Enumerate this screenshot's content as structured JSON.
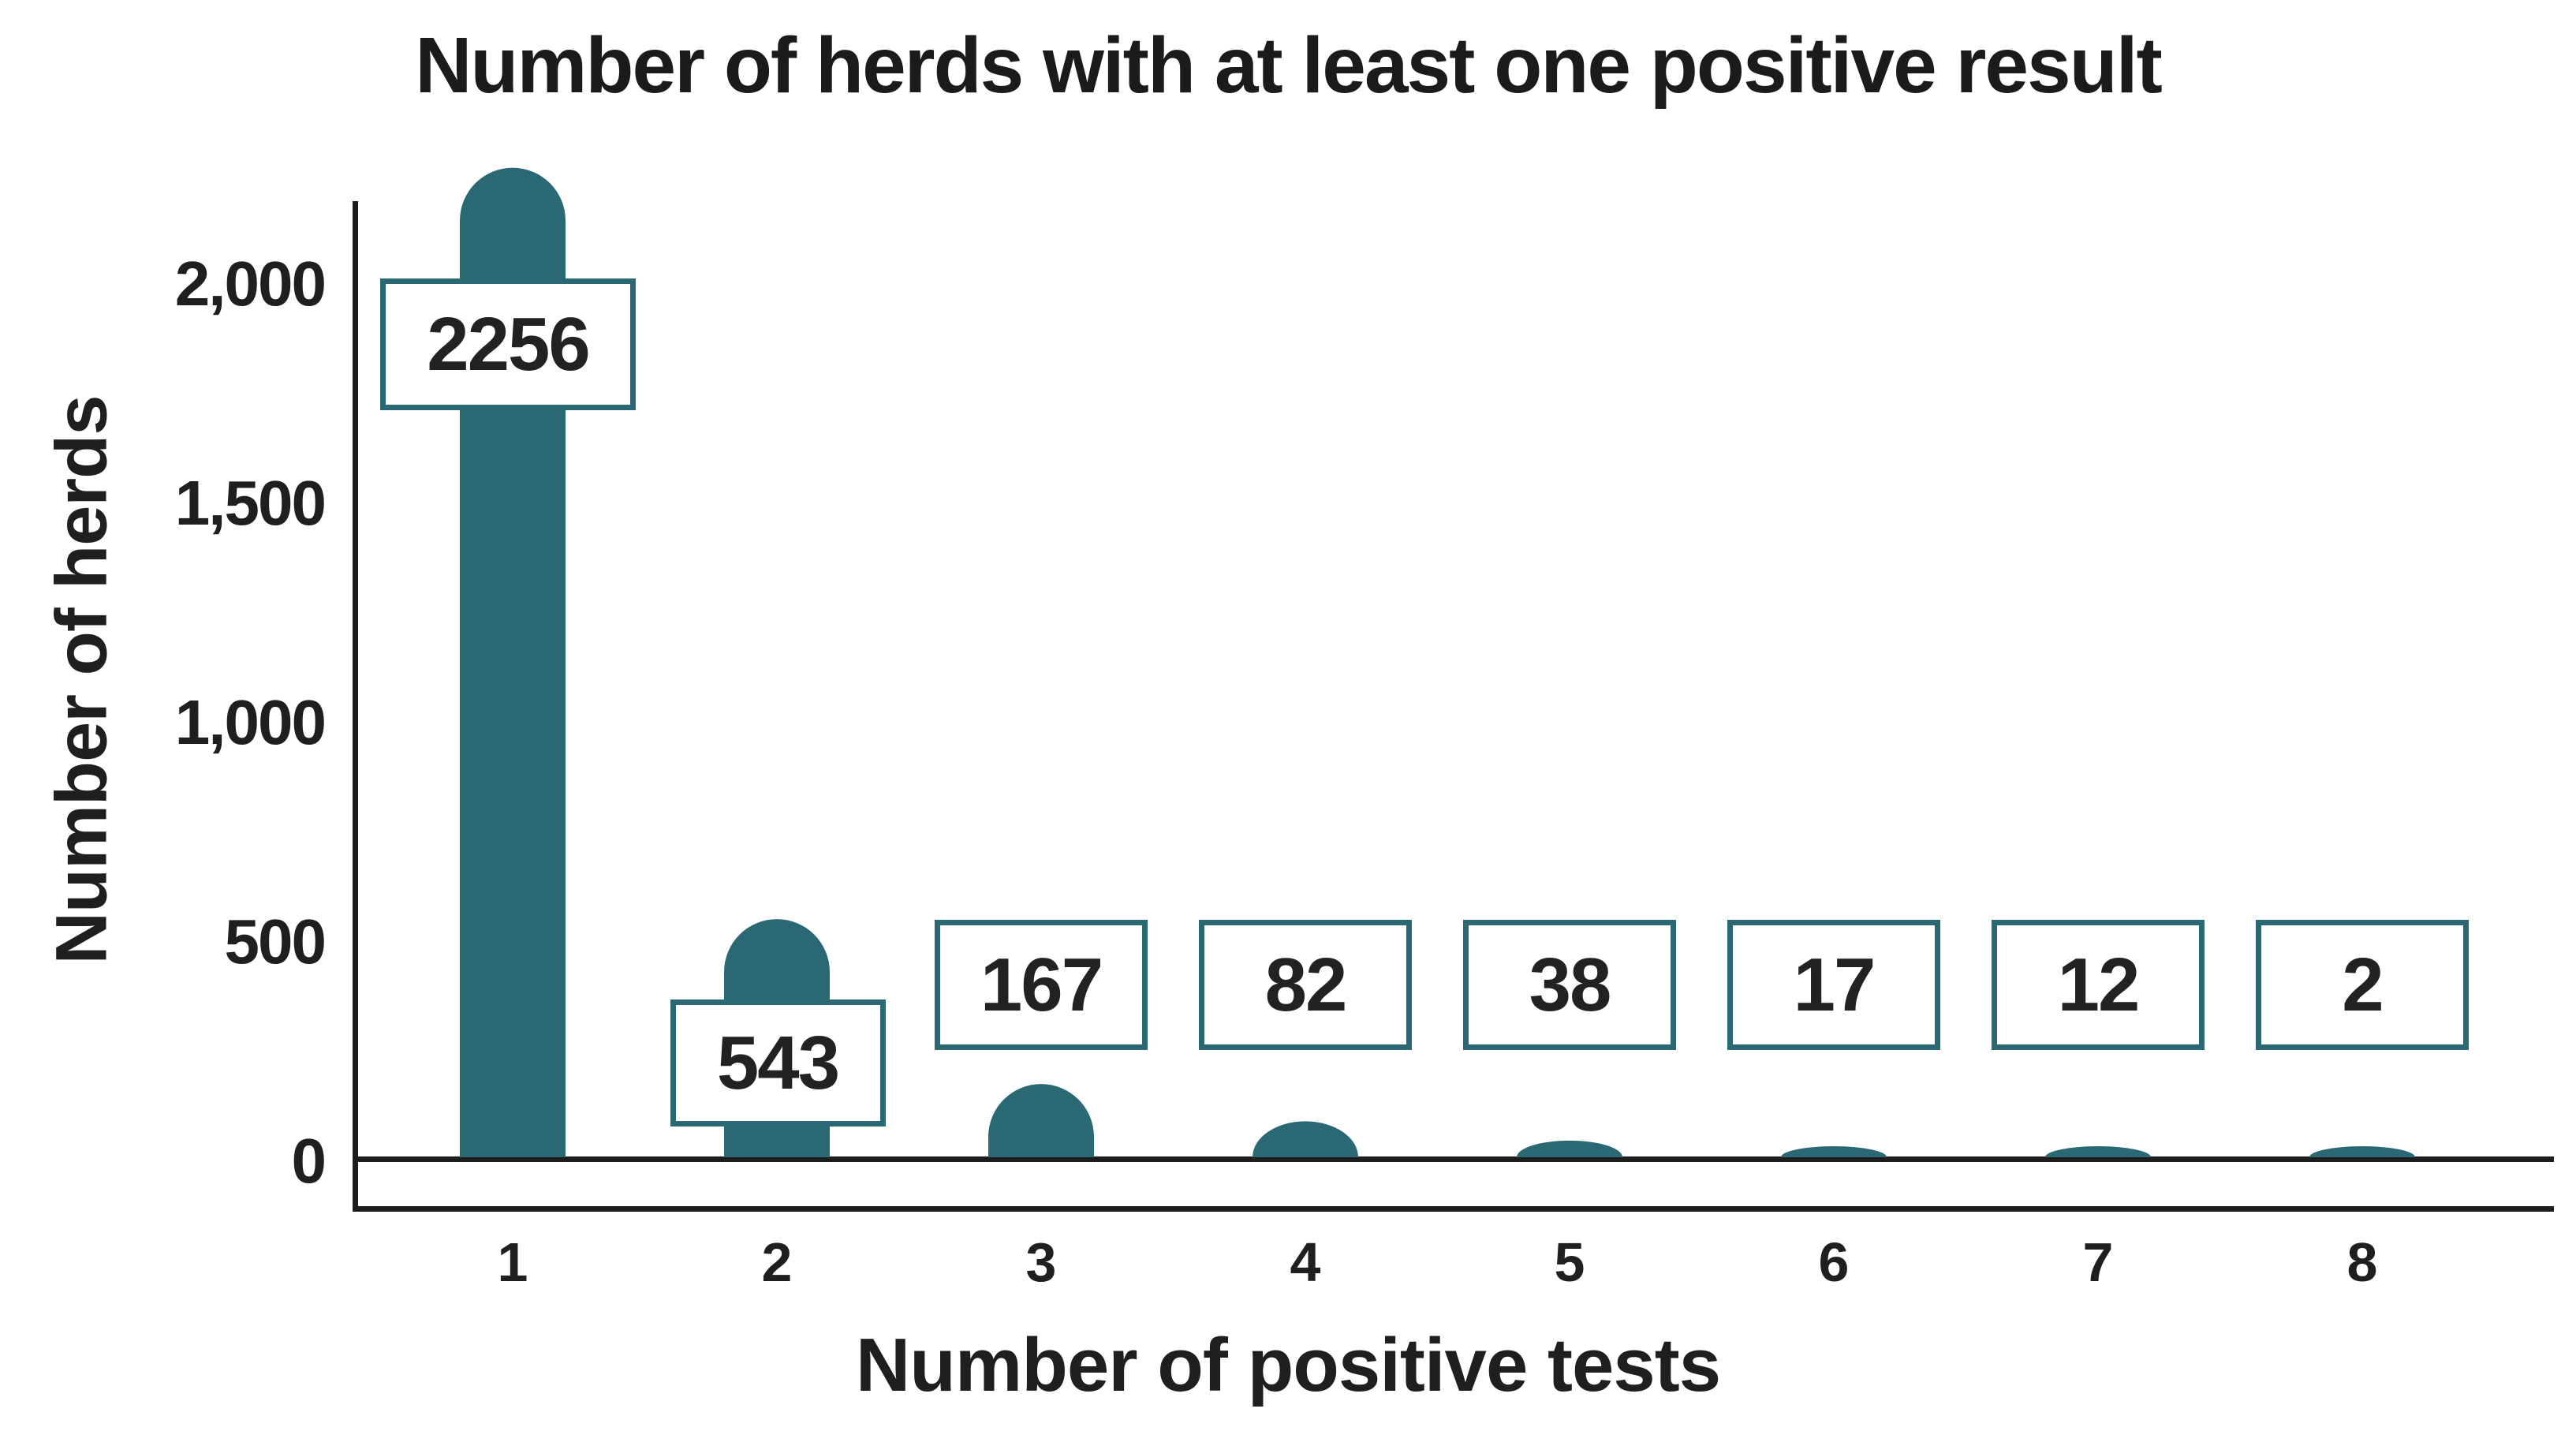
{
  "title": "Number of herds with at least one positive result",
  "chart_data": {
    "type": "bar",
    "title": "Number of herds with at least one positive result",
    "xlabel": "Number of positive tests",
    "ylabel": "Number of herds",
    "categories": [
      "1",
      "2",
      "3",
      "4",
      "5",
      "6",
      "7",
      "8"
    ],
    "values": [
      2256,
      543,
      167,
      82,
      38,
      17,
      12,
      2
    ],
    "data_labels": [
      "2256",
      "543",
      "167",
      "82",
      "38",
      "17",
      "12",
      "2"
    ],
    "yticks": [
      {
        "value": 0,
        "label": "0"
      },
      {
        "value": 500,
        "label": "500"
      },
      {
        "value": 1000,
        "label": "1,000"
      },
      {
        "value": 1500,
        "label": "1,500"
      },
      {
        "value": 2000,
        "label": "2,000"
      }
    ],
    "ylim": [
      0,
      2360
    ],
    "grid": false,
    "legend": "none",
    "bar_color": "#2a6974",
    "label_box_border_color": "#2a6974",
    "label_box_fill": "#ffffff",
    "axis_line_color": "#1d1d1d",
    "text_color": "#1f1f1f"
  }
}
